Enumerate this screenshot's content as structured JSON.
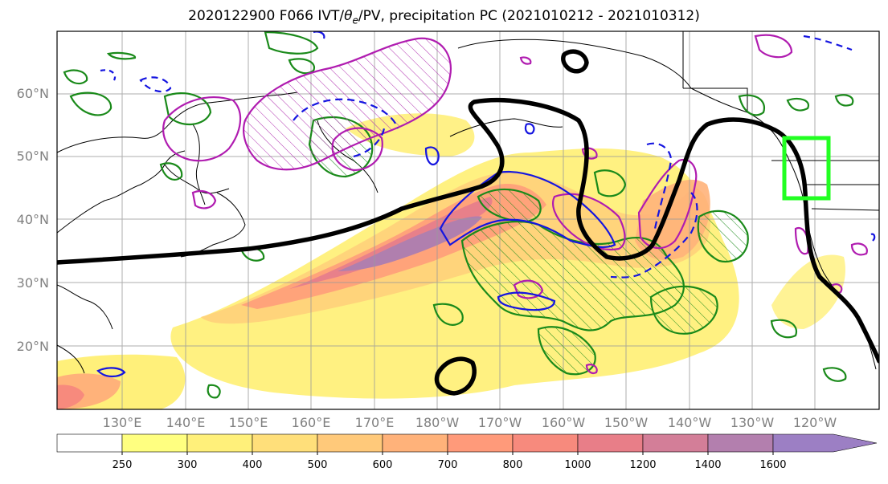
{
  "title": {
    "run": "2020122900 F066 IVT/",
    "theta": "θ",
    "theta_sub": "e",
    "rest": "/PV, precipitation PC (2021010212 - 2021010312)"
  },
  "lat_labels": [
    "60°N",
    "50°N",
    "40°N",
    "30°N",
    "20°N"
  ],
  "lon_labels": [
    "130°E",
    "140°E",
    "150°E",
    "160°E",
    "170°E",
    "180°W",
    "170°W",
    "160°W",
    "150°W",
    "140°W",
    "130°W",
    "120°W"
  ],
  "colorbar": {
    "levels": [
      "250",
      "300",
      "400",
      "500",
      "600",
      "700",
      "800",
      "1000",
      "1200",
      "1400",
      "1600"
    ],
    "colors": [
      "#ffffff",
      "#ffff80",
      "#fff07a",
      "#ffdf7a",
      "#ffc97a",
      "#ffb27a",
      "#ff9a7a",
      "#f78a7d",
      "#e87e88",
      "#d37e98",
      "#b37fae",
      "#9c7fc4"
    ]
  }
}
